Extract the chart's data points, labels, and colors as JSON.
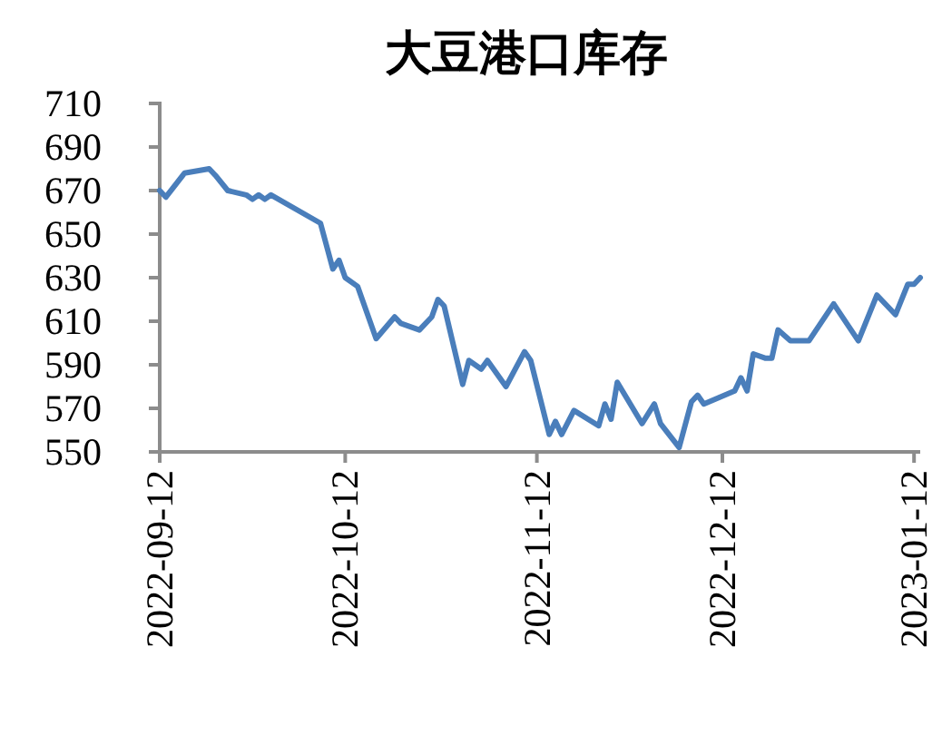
{
  "chart_data": {
    "type": "line",
    "title": "大豆港口库存",
    "x": [
      "2022-09-12",
      "2022-09-13",
      "2022-09-16",
      "2022-09-20",
      "2022-09-21",
      "2022-09-23",
      "2022-09-26",
      "2022-09-27",
      "2022-09-28",
      "2022-09-29",
      "2022-09-30",
      "2022-10-08",
      "2022-10-10",
      "2022-10-11",
      "2022-10-12",
      "2022-10-14",
      "2022-10-17",
      "2022-10-20",
      "2022-10-21",
      "2022-10-24",
      "2022-10-26",
      "2022-10-27",
      "2022-10-28",
      "2022-10-31",
      "2022-11-01",
      "2022-11-03",
      "2022-11-04",
      "2022-11-07",
      "2022-11-10",
      "2022-11-11",
      "2022-11-14",
      "2022-11-15",
      "2022-11-16",
      "2022-11-18",
      "2022-11-22",
      "2022-11-23",
      "2022-11-24",
      "2022-11-25",
      "2022-11-29",
      "2022-12-01",
      "2022-12-02",
      "2022-12-05",
      "2022-12-07",
      "2022-12-08",
      "2022-12-09",
      "2022-12-14",
      "2022-12-15",
      "2022-12-16",
      "2022-12-17",
      "2022-12-19",
      "2022-12-20",
      "2022-12-21",
      "2022-12-23",
      "2022-12-26",
      "2022-12-30",
      "2023-01-03",
      "2023-01-06",
      "2023-01-09",
      "2023-01-11",
      "2023-01-12",
      "2023-01-13"
    ],
    "series": [
      {
        "color": "#4a7ebb",
        "values": [
          670,
          667,
          678,
          680,
          677,
          670,
          668,
          666,
          668,
          666,
          668,
          655,
          634,
          638,
          630,
          626,
          602,
          612,
          609,
          606,
          612,
          620,
          617,
          581,
          592,
          588,
          592,
          580,
          596,
          592,
          558,
          564,
          558,
          569,
          562,
          572,
          565,
          582,
          563,
          572,
          563,
          552,
          573,
          576,
          572,
          578,
          584,
          578,
          595,
          593,
          593,
          606,
          601,
          601,
          618,
          601,
          622,
          613,
          627,
          627,
          630
        ]
      }
    ],
    "xlim": [
      "2022-09-12",
      "2023-01-13"
    ],
    "xticks": [
      "2022-09-12",
      "2022-10-12",
      "2022-11-12",
      "2022-12-12",
      "2023-01-12"
    ],
    "ylim": [
      550,
      710
    ],
    "yticks": [
      550,
      570,
      590,
      610,
      630,
      650,
      670,
      690,
      710
    ],
    "grid": false,
    "marker": "none",
    "line_style": "solid"
  }
}
